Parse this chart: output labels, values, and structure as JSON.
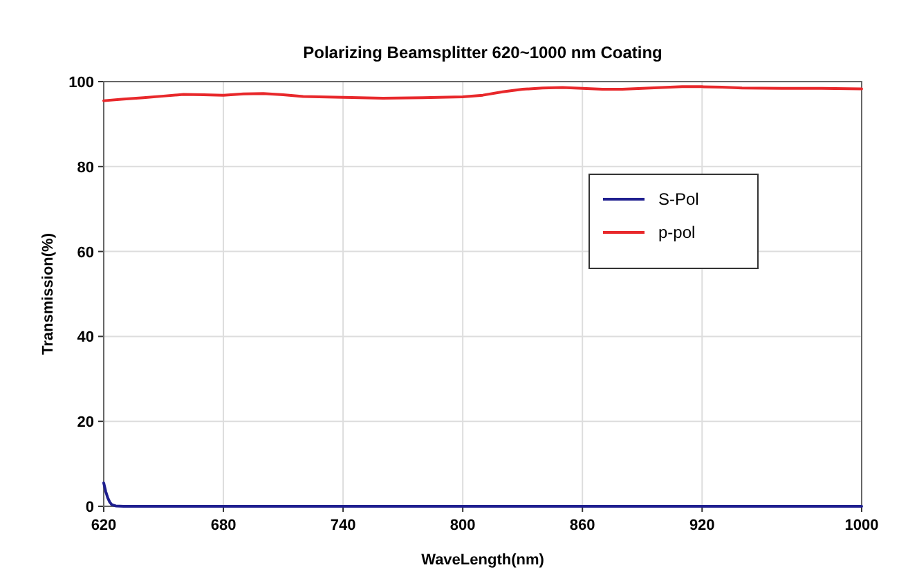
{
  "chart_data": {
    "type": "line",
    "title": "Polarizing Beamsplitter 620~1000 nm Coating",
    "xlabel": "WaveLength(nm)",
    "ylabel": "Transmission(%)",
    "xlim": [
      620,
      1000
    ],
    "xticks": [
      620,
      680,
      740,
      800,
      860,
      920,
      1000
    ],
    "ylim": [
      0,
      100
    ],
    "yticks": [
      0,
      20,
      40,
      60,
      80,
      100
    ],
    "grid": true,
    "legend": "top right",
    "series": [
      {
        "name": "S-Pol",
        "color": "#1f1f8f",
        "x": [
          620,
          621,
          622,
          623,
          624,
          626,
          630,
          660,
          700,
          800,
          900,
          1000
        ],
        "values": [
          5.5,
          3.5,
          2,
          1,
          0.4,
          0.1,
          0,
          0,
          0,
          0,
          0,
          0
        ]
      },
      {
        "name": "p-pol",
        "color": "#e8282b",
        "x": [
          620,
          630,
          640,
          650,
          660,
          670,
          680,
          690,
          700,
          710,
          720,
          740,
          760,
          780,
          800,
          810,
          820,
          830,
          840,
          850,
          860,
          870,
          880,
          890,
          900,
          910,
          920,
          930,
          940,
          960,
          980,
          1000
        ],
        "values": [
          95.5,
          95.9,
          96.2,
          96.6,
          97,
          96.9,
          96.8,
          97.1,
          97.2,
          96.9,
          96.5,
          96.3,
          96.1,
          96.2,
          96.4,
          96.8,
          97.6,
          98.2,
          98.5,
          98.6,
          98.4,
          98.2,
          98.2,
          98.4,
          98.6,
          98.8,
          98.8,
          98.7,
          98.5,
          98.4,
          98.4,
          98.3
        ]
      }
    ]
  }
}
